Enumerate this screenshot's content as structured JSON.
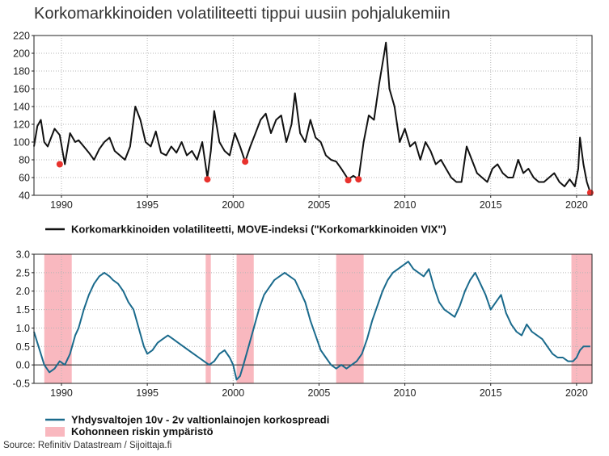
{
  "title": "Korkomarkkinoiden volatiliteetti tippui uusiin pohjalukemiin",
  "source": "Source: Refinitiv Datastream / Sijoittaja.fi",
  "colors": {
    "move": "#111111",
    "spread": "#1a6a8c",
    "risk": "#f9b8bf",
    "lows": "#e8322d"
  },
  "chart_data": [
    {
      "type": "line",
      "x_range": [
        1988.4,
        2020.9
      ],
      "ylim": [
        40,
        220
      ],
      "y_ticks": [
        "40",
        "60",
        "80",
        "100",
        "120",
        "140",
        "160",
        "180",
        "200",
        "220"
      ],
      "x_ticks": [
        "1990",
        "1995",
        "2000",
        "2005",
        "2010",
        "2015",
        "2020"
      ],
      "grid": true,
      "legend": "bottom-left",
      "series": [
        {
          "name": "Korkomarkkinoiden volatiliteetti, MOVE-indeksi (\"Korkomarkkinoiden VIX\")",
          "x": [
            1988.4,
            1988.6,
            1988.8,
            1989.0,
            1989.2,
            1989.4,
            1989.6,
            1989.9,
            1990.2,
            1990.5,
            1990.8,
            1991.0,
            1991.3,
            1991.6,
            1991.9,
            1992.2,
            1992.5,
            1992.8,
            1993.1,
            1993.4,
            1993.7,
            1994.0,
            1994.3,
            1994.6,
            1994.9,
            1995.2,
            1995.5,
            1995.8,
            1996.1,
            1996.4,
            1996.7,
            1997.0,
            1997.3,
            1997.6,
            1997.9,
            1998.2,
            1998.5,
            1998.7,
            1998.9,
            1999.2,
            1999.5,
            1999.8,
            2000.1,
            2000.4,
            2000.7,
            2001.0,
            2001.3,
            2001.6,
            2001.9,
            2002.2,
            2002.5,
            2002.8,
            2003.1,
            2003.4,
            2003.6,
            2003.9,
            2004.2,
            2004.5,
            2004.8,
            2005.1,
            2005.4,
            2005.7,
            2006.0,
            2006.3,
            2006.7,
            2007.0,
            2007.3,
            2007.6,
            2007.9,
            2008.2,
            2008.5,
            2008.8,
            2008.9,
            2009.1,
            2009.4,
            2009.7,
            2010.0,
            2010.3,
            2010.6,
            2010.9,
            2011.2,
            2011.5,
            2011.8,
            2012.1,
            2012.4,
            2012.7,
            2013.0,
            2013.3,
            2013.6,
            2013.9,
            2014.2,
            2014.5,
            2014.8,
            2015.1,
            2015.4,
            2015.7,
            2016.0,
            2016.3,
            2016.6,
            2016.9,
            2017.2,
            2017.5,
            2017.8,
            2018.1,
            2018.4,
            2018.7,
            2019.0,
            2019.3,
            2019.6,
            2019.9,
            2020.1,
            2020.2,
            2020.4,
            2020.6,
            2020.8
          ],
          "y": [
            95,
            118,
            125,
            100,
            95,
            105,
            115,
            108,
            75,
            110,
            100,
            102,
            95,
            88,
            80,
            92,
            100,
            105,
            90,
            85,
            80,
            95,
            140,
            125,
            100,
            95,
            112,
            88,
            85,
            95,
            88,
            100,
            85,
            90,
            80,
            100,
            60,
            90,
            135,
            100,
            90,
            85,
            110,
            95,
            78,
            95,
            110,
            125,
            132,
            110,
            125,
            130,
            100,
            120,
            155,
            110,
            100,
            125,
            105,
            100,
            85,
            80,
            78,
            70,
            58,
            62,
            58,
            100,
            130,
            125,
            165,
            200,
            212,
            160,
            140,
            100,
            115,
            95,
            100,
            80,
            100,
            90,
            75,
            80,
            70,
            60,
            55,
            55,
            95,
            80,
            65,
            60,
            55,
            70,
            75,
            65,
            60,
            60,
            80,
            65,
            70,
            60,
            55,
            55,
            60,
            65,
            55,
            50,
            58,
            50,
            70,
            105,
            75,
            55,
            43
          ]
        }
      ],
      "annotations": [
        {
          "label": "low",
          "x": 1989.9,
          "y": 75
        },
        {
          "label": "low",
          "x": 1998.5,
          "y": 58
        },
        {
          "label": "low",
          "x": 2000.7,
          "y": 78
        },
        {
          "label": "low",
          "x": 2006.7,
          "y": 57
        },
        {
          "label": "low",
          "x": 2007.3,
          "y": 58
        },
        {
          "label": "low",
          "x": 2020.8,
          "y": 43
        }
      ]
    },
    {
      "type": "line",
      "x_range": [
        1988.4,
        2020.9
      ],
      "ylim": [
        -0.5,
        3.0
      ],
      "y_ticks": [
        "-0.5",
        "0.0",
        "0.5",
        "1.0",
        "1.5",
        "2.0",
        "2.5",
        "3.0"
      ],
      "x_ticks": [
        "1990",
        "1995",
        "2000",
        "2005",
        "2010",
        "2015",
        "2020"
      ],
      "grid": true,
      "legend": "bottom-left",
      "series": [
        {
          "name": "Yhdysvaltojen 10v - 2v valtionlainojen korkospreadi",
          "x": [
            1988.4,
            1988.6,
            1988.8,
            1989.0,
            1989.3,
            1989.6,
            1989.9,
            1990.2,
            1990.5,
            1990.8,
            1991.0,
            1991.3,
            1991.6,
            1991.9,
            1992.2,
            1992.5,
            1992.8,
            1993.0,
            1993.3,
            1993.6,
            1993.9,
            1994.2,
            1994.5,
            1994.8,
            1995.0,
            1995.3,
            1995.6,
            1995.9,
            1996.2,
            1996.5,
            1996.8,
            1997.1,
            1997.4,
            1997.7,
            1998.0,
            1998.3,
            1998.6,
            1998.9,
            1999.2,
            1999.5,
            1999.8,
            2000.0,
            2000.2,
            2000.4,
            2000.6,
            2000.9,
            2001.2,
            2001.5,
            2001.8,
            2002.1,
            2002.4,
            2002.7,
            2003.0,
            2003.3,
            2003.6,
            2003.9,
            2004.2,
            2004.5,
            2004.8,
            2005.1,
            2005.4,
            2005.7,
            2006.0,
            2006.3,
            2006.6,
            2006.9,
            2007.2,
            2007.5,
            2007.8,
            2008.1,
            2008.4,
            2008.7,
            2009.0,
            2009.3,
            2009.6,
            2009.9,
            2010.2,
            2010.5,
            2010.8,
            2011.1,
            2011.4,
            2011.7,
            2012.0,
            2012.3,
            2012.6,
            2012.9,
            2013.2,
            2013.5,
            2013.8,
            2014.1,
            2014.4,
            2014.7,
            2015.0,
            2015.3,
            2015.6,
            2015.9,
            2016.2,
            2016.5,
            2016.8,
            2017.1,
            2017.4,
            2017.7,
            2018.0,
            2018.3,
            2018.6,
            2018.9,
            2019.2,
            2019.5,
            2019.8,
            2020.0,
            2020.2,
            2020.4,
            2020.6,
            2020.8
          ],
          "y": [
            0.9,
            0.6,
            0.3,
            0.0,
            -0.2,
            -0.1,
            0.1,
            0.0,
            0.3,
            0.8,
            1.0,
            1.5,
            1.9,
            2.2,
            2.4,
            2.5,
            2.4,
            2.3,
            2.2,
            2.0,
            1.7,
            1.5,
            1.0,
            0.5,
            0.3,
            0.4,
            0.6,
            0.7,
            0.8,
            0.7,
            0.6,
            0.5,
            0.4,
            0.3,
            0.2,
            0.1,
            0.0,
            0.1,
            0.3,
            0.4,
            0.2,
            0.0,
            -0.4,
            -0.3,
            0.0,
            0.5,
            1.0,
            1.5,
            1.9,
            2.1,
            2.3,
            2.4,
            2.5,
            2.4,
            2.3,
            2.0,
            1.7,
            1.2,
            0.8,
            0.4,
            0.2,
            0.0,
            -0.1,
            0.0,
            -0.1,
            0.0,
            0.1,
            0.3,
            0.7,
            1.2,
            1.6,
            2.0,
            2.3,
            2.5,
            2.6,
            2.7,
            2.8,
            2.6,
            2.5,
            2.4,
            2.6,
            2.1,
            1.7,
            1.5,
            1.4,
            1.3,
            1.6,
            2.0,
            2.3,
            2.5,
            2.2,
            1.9,
            1.5,
            1.7,
            1.9,
            1.4,
            1.1,
            0.9,
            0.8,
            1.1,
            0.9,
            0.8,
            0.7,
            0.5,
            0.3,
            0.2,
            0.2,
            0.1,
            0.1,
            0.2,
            0.4,
            0.5,
            0.5,
            0.5
          ]
        }
      ],
      "regions": [
        {
          "name": "Kohonneen riskin ympäristö",
          "from": 1989.0,
          "to": 1990.6
        },
        {
          "name": "Kohonneen riskin ympäristö",
          "from": 1998.4,
          "to": 1998.7
        },
        {
          "name": "Kohonneen riskin ympäristö",
          "from": 2000.2,
          "to": 2001.2
        },
        {
          "name": "Kohonneen riskin ympäristö",
          "from": 2006.0,
          "to": 2007.6
        },
        {
          "name": "Kohonneen riskin ympäristö",
          "from": 2019.7,
          "to": 2020.9
        }
      ],
      "legend_entries": [
        "Yhdysvaltojen 10v - 2v valtionlainojen korkospreadi",
        "Kohonneen riskin ympäristö"
      ]
    }
  ]
}
